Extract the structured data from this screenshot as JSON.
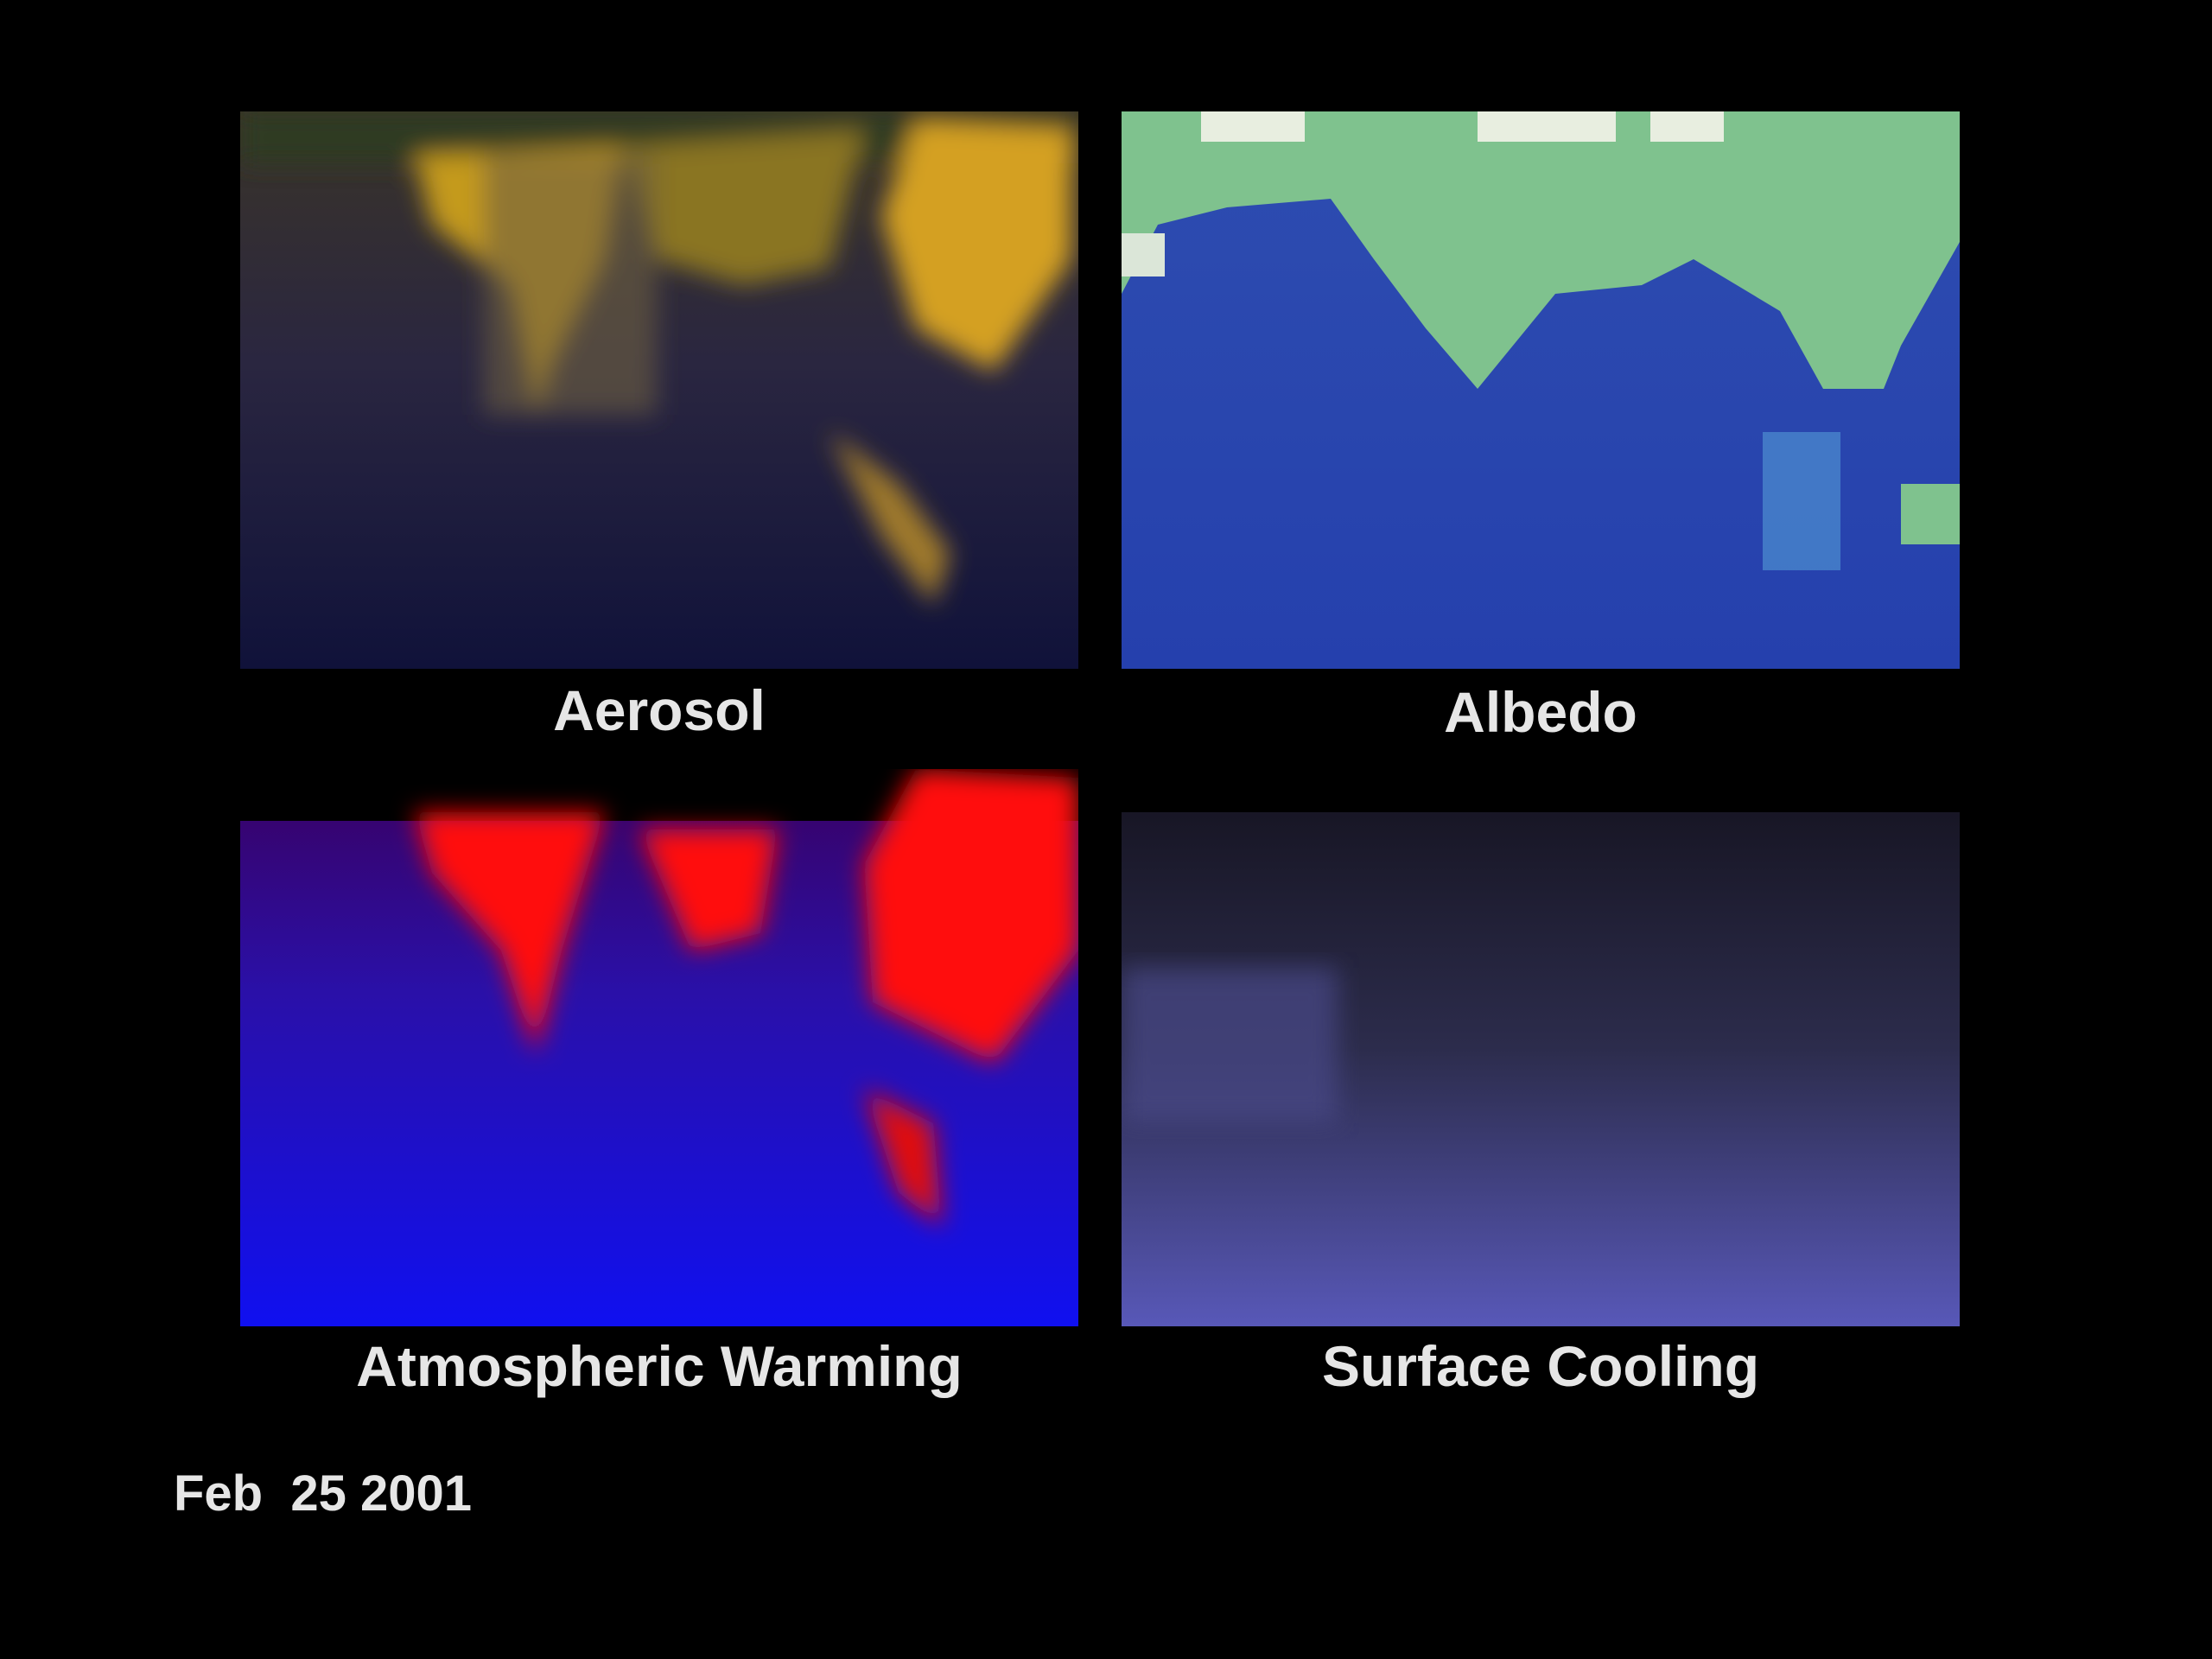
{
  "panels": [
    {
      "label": "Aerosol"
    },
    {
      "label": "Albedo"
    },
    {
      "label": "Atmospheric Warming"
    },
    {
      "label": "Surface Cooling"
    }
  ],
  "date": "Feb  25 2001"
}
